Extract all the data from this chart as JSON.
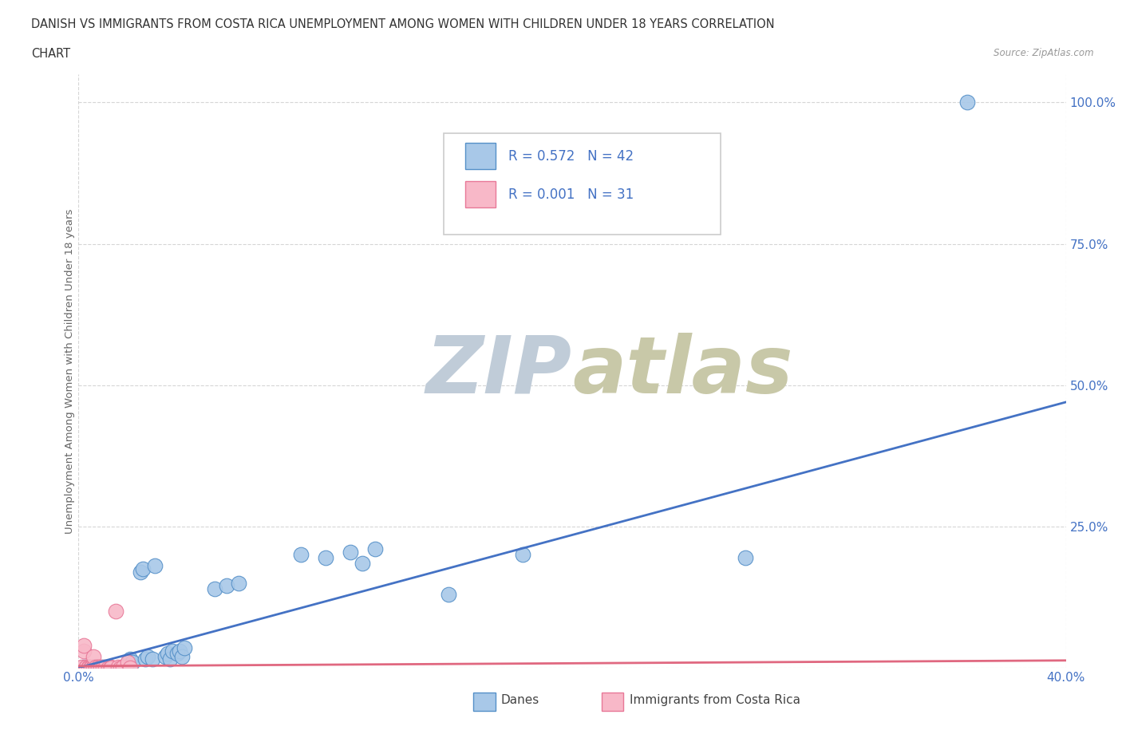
{
  "title_line1": "DANISH VS IMMIGRANTS FROM COSTA RICA UNEMPLOYMENT AMONG WOMEN WITH CHILDREN UNDER 18 YEARS CORRELATION",
  "title_line2": "CHART",
  "source": "Source: ZipAtlas.com",
  "ylabel": "Unemployment Among Women with Children Under 18 years",
  "yticks": [
    0.0,
    0.25,
    0.5,
    0.75,
    1.0
  ],
  "ytick_labels": [
    "",
    "25.0%",
    "50.0%",
    "75.0%",
    "100.0%"
  ],
  "danes_R": 0.572,
  "danes_N": 42,
  "costa_rica_R": 0.001,
  "costa_rica_N": 31,
  "danes_color": "#a8c8e8",
  "danes_edge_color": "#5590c8",
  "danes_line_color": "#4472c4",
  "costa_rica_color": "#f8b8c8",
  "costa_rica_edge_color": "#e87898",
  "costa_rica_line_color": "#e06880",
  "watermark_top": "#c8d8e8",
  "watermark_bottom": "#c8d4c0",
  "legend_R_color": "#4472c4",
  "xlim": [
    0.0,
    0.4
  ],
  "ylim": [
    0.0,
    1.05
  ],
  "danes_x": [
    0.001,
    0.002,
    0.003,
    0.004,
    0.005,
    0.006,
    0.007,
    0.008,
    0.009,
    0.01,
    0.011,
    0.012,
    0.013,
    0.02,
    0.021,
    0.022,
    0.025,
    0.026,
    0.027,
    0.028,
    0.03,
    0.031,
    0.035,
    0.036,
    0.037,
    0.038,
    0.04,
    0.041,
    0.042,
    0.043,
    0.055,
    0.06,
    0.065,
    0.09,
    0.1,
    0.11,
    0.115,
    0.12,
    0.15,
    0.18,
    0.27,
    0.36
  ],
  "danes_y": [
    0.0,
    0.001,
    0.0,
    0.001,
    0.0,
    0.001,
    0.0,
    0.001,
    0.0,
    0.001,
    0.0,
    0.001,
    0.0,
    0.01,
    0.015,
    0.01,
    0.17,
    0.175,
    0.015,
    0.02,
    0.015,
    0.18,
    0.02,
    0.025,
    0.015,
    0.03,
    0.025,
    0.03,
    0.02,
    0.035,
    0.14,
    0.145,
    0.15,
    0.2,
    0.195,
    0.205,
    0.185,
    0.21,
    0.13,
    0.2,
    0.195,
    1.0
  ],
  "costa_rica_x": [
    0.001,
    0.001,
    0.002,
    0.002,
    0.003,
    0.003,
    0.003,
    0.004,
    0.004,
    0.005,
    0.005,
    0.006,
    0.006,
    0.006,
    0.007,
    0.007,
    0.008,
    0.008,
    0.009,
    0.009,
    0.01,
    0.011,
    0.012,
    0.013,
    0.013,
    0.015,
    0.016,
    0.017,
    0.018,
    0.02,
    0.021
  ],
  "costa_rica_y": [
    0.0,
    0.001,
    0.03,
    0.04,
    0.0,
    0.001,
    0.002,
    0.001,
    0.0,
    0.001,
    0.0,
    0.001,
    0.0,
    0.02,
    0.0,
    0.001,
    0.0,
    0.001,
    0.0,
    0.001,
    0.0,
    0.001,
    0.0,
    0.001,
    0.0,
    0.1,
    0.001,
    0.0,
    0.001,
    0.01,
    0.0
  ]
}
